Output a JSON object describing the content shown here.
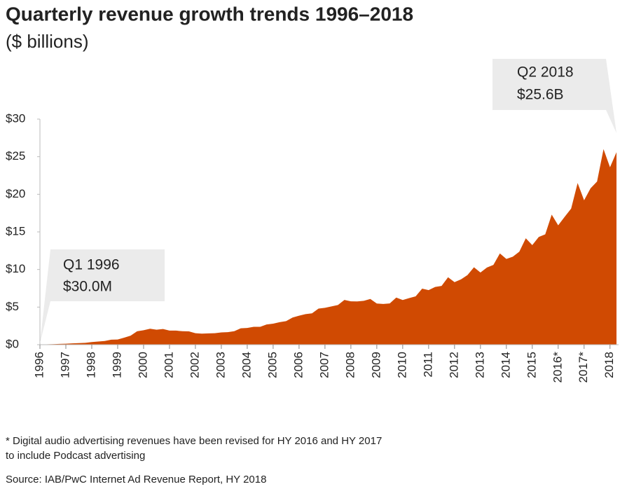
{
  "chart_data": {
    "type": "area",
    "title": "Quarterly revenue growth trends 1996–2018",
    "subtitle": "($ billions)",
    "color": "#d04a02",
    "x": [
      1996,
      1996.25,
      1996.5,
      1996.75,
      1997,
      1997.25,
      1997.5,
      1997.75,
      1998,
      1998.25,
      1998.5,
      1998.75,
      1999,
      1999.25,
      1999.5,
      1999.75,
      2000,
      2000.25,
      2000.5,
      2000.75,
      2001,
      2001.25,
      2001.5,
      2001.75,
      2002,
      2002.25,
      2002.5,
      2002.75,
      2003,
      2003.25,
      2003.5,
      2003.75,
      2004,
      2004.25,
      2004.5,
      2004.75,
      2005,
      2005.25,
      2005.5,
      2005.75,
      2006,
      2006.25,
      2006.5,
      2006.75,
      2007,
      2007.25,
      2007.5,
      2007.75,
      2008,
      2008.25,
      2008.5,
      2008.75,
      2009,
      2009.25,
      2009.5,
      2009.75,
      2010,
      2010.25,
      2010.5,
      2010.75,
      2011,
      2011.25,
      2011.5,
      2011.75,
      2012,
      2012.25,
      2012.5,
      2012.75,
      2013,
      2013.25,
      2013.5,
      2013.75,
      2014,
      2014.25,
      2014.5,
      2014.75,
      2015,
      2015.25,
      2015.5,
      2015.75,
      2016,
      2016.25,
      2016.5,
      2016.75,
      2017,
      2017.25,
      2017.5,
      2017.75,
      2018,
      2018.25
    ],
    "values": [
      0.03,
      0.05,
      0.07,
      0.11,
      0.13,
      0.17,
      0.21,
      0.24,
      0.35,
      0.42,
      0.49,
      0.66,
      0.69,
      0.93,
      1.2,
      1.78,
      1.92,
      2.12,
      1.99,
      2.09,
      1.87,
      1.87,
      1.79,
      1.77,
      1.52,
      1.47,
      1.5,
      1.52,
      1.63,
      1.66,
      1.79,
      2.18,
      2.23,
      2.37,
      2.37,
      2.69,
      2.8,
      2.99,
      3.13,
      3.61,
      3.85,
      4.06,
      4.17,
      4.8,
      4.9,
      5.09,
      5.27,
      5.95,
      5.77,
      5.75,
      5.84,
      6.08,
      5.47,
      5.42,
      5.48,
      6.26,
      5.94,
      6.19,
      6.43,
      7.45,
      7.26,
      7.68,
      7.82,
      8.97,
      8.31,
      8.69,
      9.26,
      10.29,
      9.6,
      10.26,
      10.61,
      12.13,
      11.4,
      11.71,
      12.37,
      14.15,
      13.24,
      14.33,
      14.67,
      17.3,
      15.87,
      17.0,
      18.1,
      21.5,
      19.2,
      20.8,
      21.7,
      26.0,
      23.6,
      25.6
    ],
    "xlim": [
      1996,
      2018.25
    ],
    "xticks": [
      1996,
      1997,
      1998,
      1999,
      2000,
      2001,
      2002,
      2003,
      2004,
      2005,
      2006,
      2007,
      2008,
      2009,
      2010,
      2011,
      2012,
      2013,
      2014,
      2015,
      {
        "value": 2016,
        "label": "2016*"
      },
      {
        "value": 2017,
        "label": "2017*"
      },
      2018
    ],
    "ylim": [
      0,
      30
    ],
    "yticks": [
      {
        "value": 0,
        "label": "$0"
      },
      {
        "value": 5,
        "label": "$5"
      },
      {
        "value": 10,
        "label": "$10"
      },
      {
        "value": 15,
        "label": "$15"
      },
      {
        "value": 20,
        "label": "$20"
      },
      {
        "value": 25,
        "label": "$25"
      },
      {
        "value": 30,
        "label": "$30"
      }
    ],
    "annotations": [
      [
        "Q1 1996",
        "$30.0M"
      ],
      [
        "Q2 2018",
        "$25.6B"
      ]
    ],
    "notes": [
      "* Digital audio advertising revenues have been revised for HY 2016 and HY 2017",
      "to include Podcast advertising"
    ],
    "source": "Source: IAB/PwC Internet Ad Revenue Report, HY 2018"
  }
}
